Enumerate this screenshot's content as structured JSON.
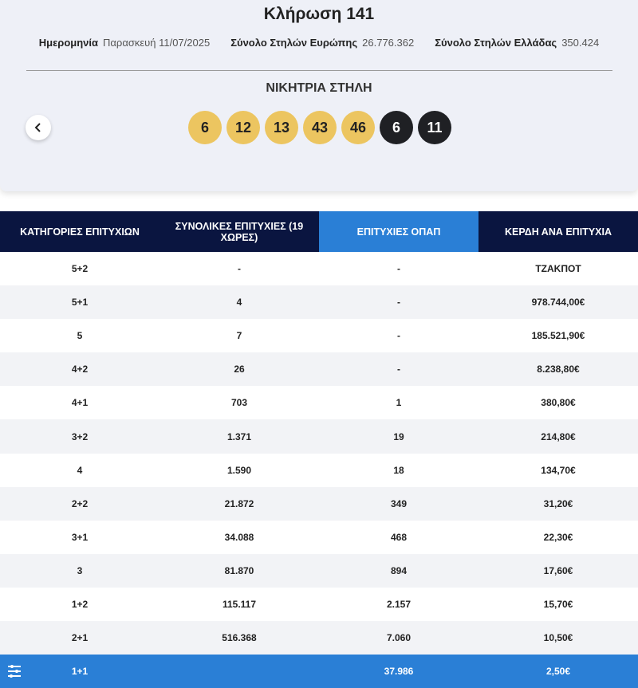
{
  "header": {
    "title": "Κλήρωση 141",
    "info": [
      {
        "label": "Ημερομηνία",
        "value": "Παρασκευή 11/07/2025"
      },
      {
        "label": "Σύνολο Στηλών Ευρώπης",
        "value": "26.776.362"
      },
      {
        "label": "Σύνολο Στηλών Ελλάδας",
        "value": "350.424"
      }
    ],
    "winning_title": "ΝΙΚΗΤΡΙΑ ΣΤΗΛΗ",
    "numbers": [
      "6",
      "12",
      "13",
      "43",
      "46"
    ],
    "stars": [
      "6",
      "11"
    ]
  },
  "table": {
    "columns": [
      "ΚΑΤΗΓΟΡΙΕΣ ΕΠΙΤΥΧΙΩΝ",
      "ΣΥΝΟΛΙΚΕΣ ΕΠΙΤΥΧΙΕΣ (19 ΧΩΡΕΣ)",
      "ΕΠΙΤΥΧΙΕΣ ΟΠΑΠ",
      "ΚΕΡΔΗ ΑΝΑ ΕΠΙΤΥΧΙΑ"
    ],
    "rows": [
      [
        "5+2",
        "-",
        "-",
        "ΤΖΑΚΠΟΤ"
      ],
      [
        "5+1",
        "4",
        "-",
        "978.744,00€"
      ],
      [
        "5",
        "7",
        "-",
        "185.521,90€"
      ],
      [
        "4+2",
        "26",
        "-",
        "8.238,80€"
      ],
      [
        "4+1",
        "703",
        "1",
        "380,80€"
      ],
      [
        "3+2",
        "1.371",
        "19",
        "214,80€"
      ],
      [
        "4",
        "1.590",
        "18",
        "134,70€"
      ],
      [
        "2+2",
        "21.872",
        "349",
        "31,20€"
      ],
      [
        "3+1",
        "34.088",
        "468",
        "22,30€"
      ],
      [
        "3",
        "81.870",
        "894",
        "17,60€"
      ],
      [
        "1+2",
        "115.117",
        "2.157",
        "15,70€"
      ],
      [
        "2+1",
        "516.368",
        "7.060",
        "10,50€"
      ],
      [
        "1+1",
        "",
        "37.986",
        "2,50€"
      ]
    ]
  }
}
